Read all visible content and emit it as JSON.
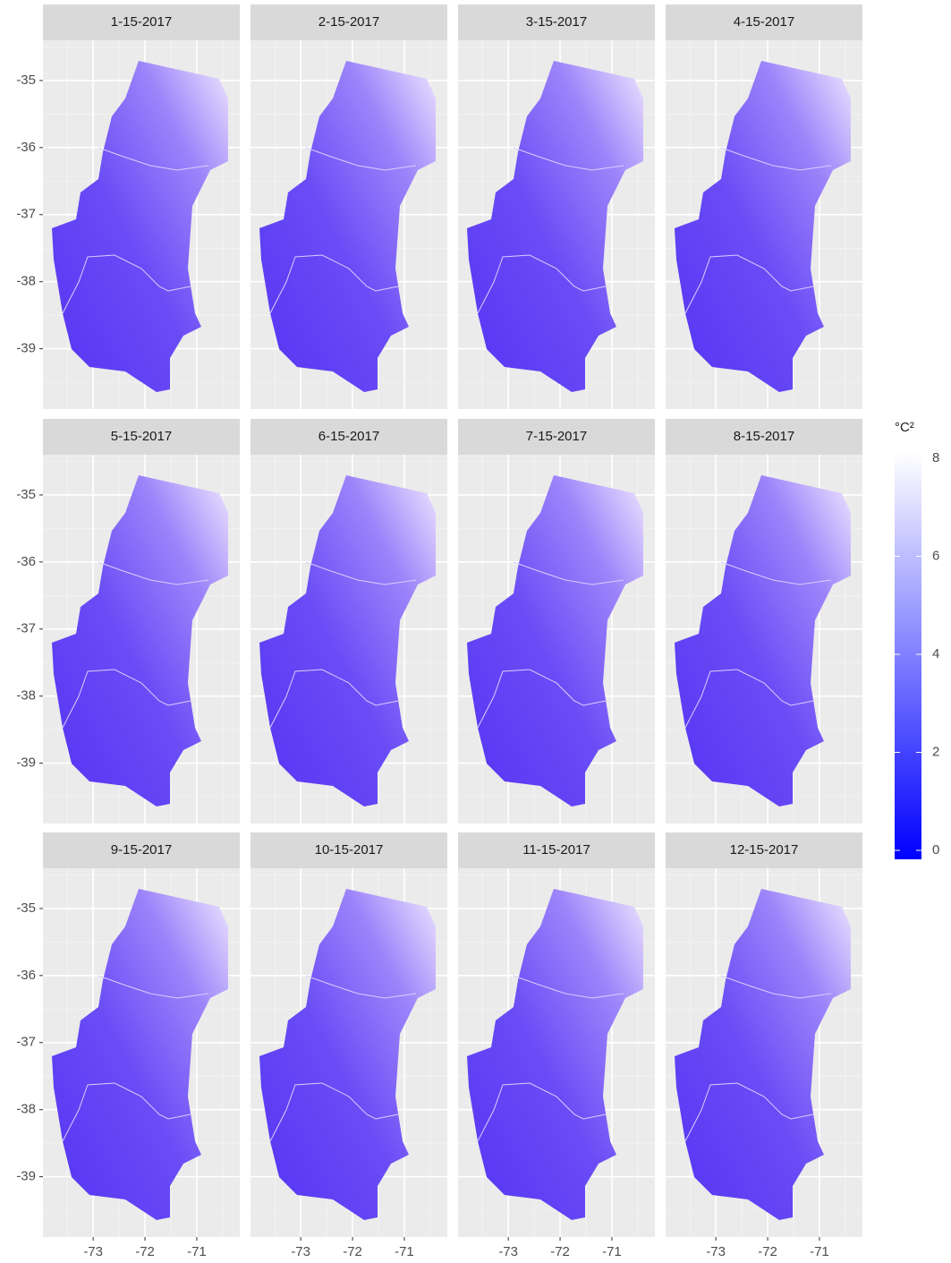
{
  "chart_data": {
    "type": "facet-map",
    "panels": [
      "1-15-2017",
      "2-15-2017",
      "3-15-2017",
      "4-15-2017",
      "5-15-2017",
      "6-15-2017",
      "7-15-2017",
      "8-15-2017",
      "9-15-2017",
      "10-15-2017",
      "11-15-2017",
      "12-15-2017"
    ],
    "xlim": [
      -73.97,
      -70.17
    ],
    "xticks": [
      -73,
      -72,
      -71
    ],
    "ylim": [
      -39.9,
      -34.4
    ],
    "yticks": [
      -39,
      -38,
      -37,
      -36,
      -35
    ],
    "grid": true,
    "legend": {
      "title": "°C²",
      "lim": [
        0,
        8
      ],
      "ticks": [
        0,
        2,
        4,
        6,
        8
      ],
      "colors": [
        "#0000ff",
        "#ffffff"
      ]
    }
  }
}
